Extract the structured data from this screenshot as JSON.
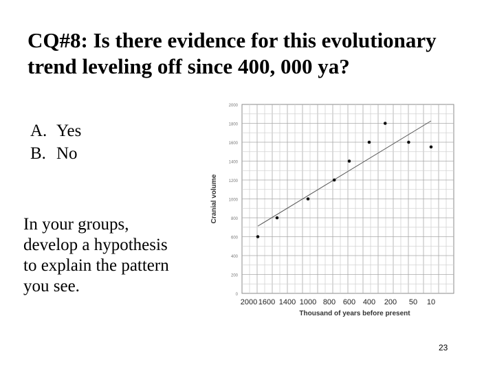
{
  "slide": {
    "title_lines": [
      "CQ#8: Is there evidence for this evolutionary",
      "trend leveling off since 400, 000 ya?"
    ],
    "options": [
      {
        "letter": "A.",
        "text": "Yes"
      },
      {
        "letter": "B.",
        "text": "No"
      }
    ],
    "prompt_lines": [
      "In your groups,",
      "develop a hypothesis",
      "to explain the pattern",
      "you see."
    ],
    "slide_number": "23"
  },
  "chart_data": {
    "type": "scatter",
    "title": "",
    "xlabel": "Thousand of years before present",
    "ylabel": "Cranial volume",
    "x_ticks": [
      "2000",
      "1600",
      "1400",
      "1000",
      "800",
      "600",
      "400",
      "200",
      "50",
      "10"
    ],
    "y_ticks": [
      0,
      200,
      400,
      600,
      800,
      1000,
      1200,
      1400,
      1600,
      1800,
      2000
    ],
    "ylim": [
      0,
      2000
    ],
    "grid": true,
    "trendline": true,
    "points": [
      {
        "x": "1800",
        "y": 600
      },
      {
        "x": "1500",
        "y": 800
      },
      {
        "x": "1000",
        "y": 1000
      },
      {
        "x": "750",
        "y": 1200
      },
      {
        "x": "600",
        "y": 1400
      },
      {
        "x": "400",
        "y": 1600
      },
      {
        "x": "250",
        "y": 1800
      },
      {
        "x": "80",
        "y": 1600
      },
      {
        "x": "10",
        "y": 1550
      }
    ]
  }
}
